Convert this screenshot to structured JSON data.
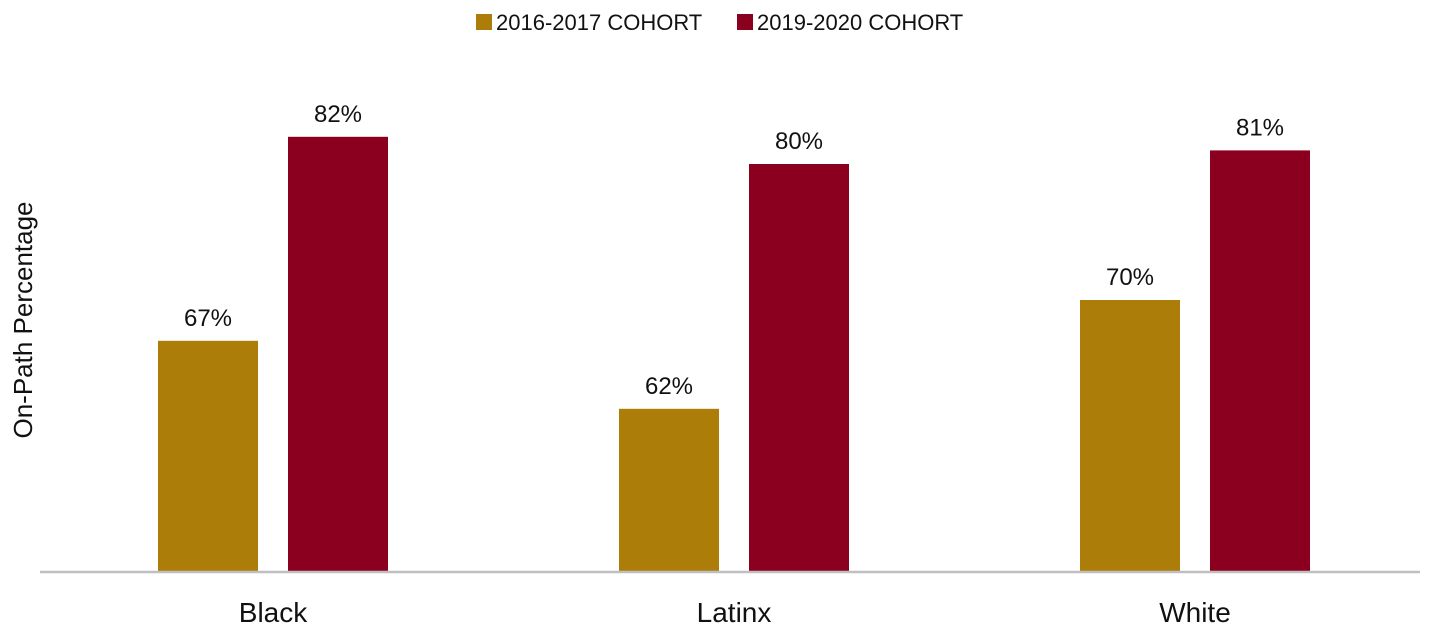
{
  "chart_data": {
    "type": "bar",
    "title": "",
    "xlabel": "",
    "ylabel": "On-Path Percentage",
    "categories": [
      "Black",
      "Latinx",
      "White"
    ],
    "series": [
      {
        "name": "2016-2017 COHORT",
        "color": "#AC7E09",
        "values": [
          67,
          62,
          70
        ],
        "labels": [
          "67%",
          "62%",
          "70%"
        ]
      },
      {
        "name": "2019-2020 COHORT",
        "color": "#8C001F",
        "values": [
          82,
          80,
          81
        ],
        "labels": [
          "82%",
          "80%",
          "81%"
        ]
      }
    ],
    "ylim": [
      50,
      85
    ],
    "grid": false,
    "legend_position": "top-center",
    "axis_color": "#BFBFBF"
  }
}
